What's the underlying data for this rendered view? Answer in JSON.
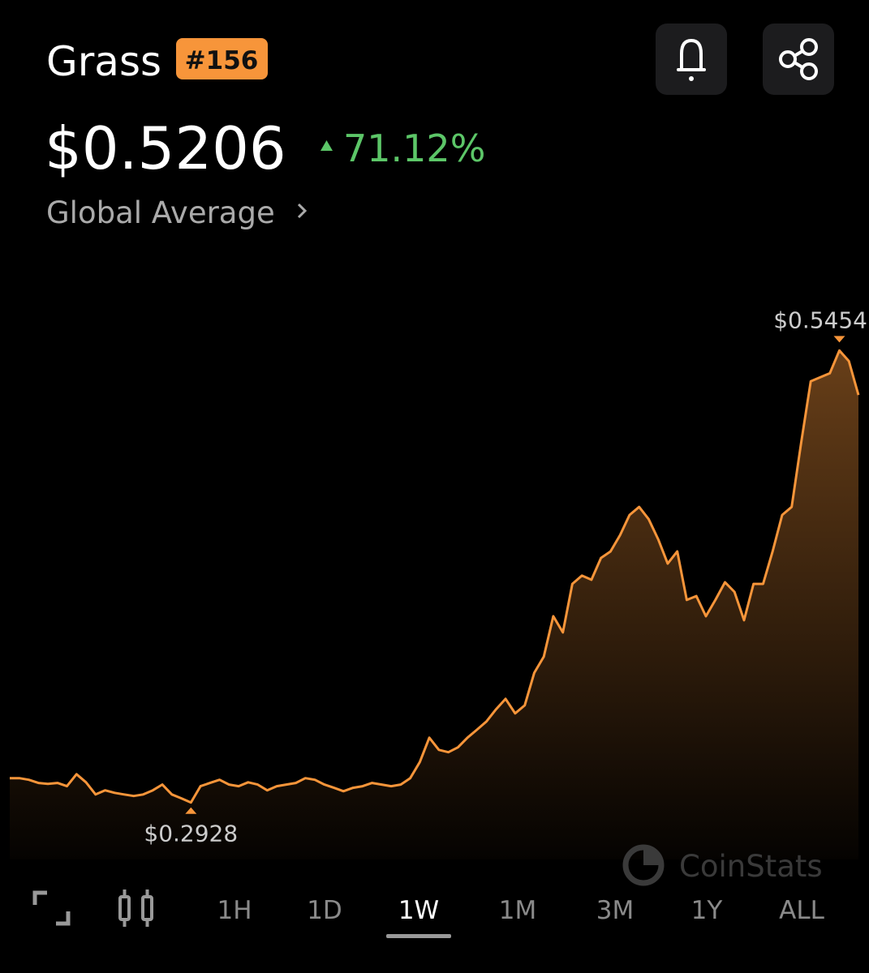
{
  "header": {
    "name": "Grass",
    "rank": "#156",
    "price": "$0.5206",
    "change": "71.12%",
    "source": "Global Average"
  },
  "chart_data": {
    "type": "line",
    "color": "#f7953a",
    "values": [
      0.3064,
      0.3064,
      0.3055,
      0.3037,
      0.3032,
      0.3037,
      0.3019,
      0.3086,
      0.3041,
      0.2973,
      0.2996,
      0.2982,
      0.2973,
      0.2964,
      0.2973,
      0.2996,
      0.3028,
      0.2973,
      0.2951,
      0.2928,
      0.3019,
      0.3037,
      0.3055,
      0.3028,
      0.3019,
      0.3041,
      0.3028,
      0.2996,
      0.3019,
      0.3028,
      0.3037,
      0.3064,
      0.3055,
      0.3028,
      0.301,
      0.2991,
      0.301,
      0.3019,
      0.3037,
      0.3028,
      0.3019,
      0.3028,
      0.3064,
      0.3154,
      0.329,
      0.3222,
      0.3209,
      0.3236,
      0.329,
      0.3335,
      0.3381,
      0.3449,
      0.3507,
      0.3426,
      0.3471,
      0.3652,
      0.3743,
      0.3969,
      0.3879,
      0.415,
      0.4196,
      0.4173,
      0.4295,
      0.4331,
      0.4422,
      0.4535,
      0.458,
      0.4512,
      0.4399,
      0.4263,
      0.4331,
      0.406,
      0.4082,
      0.3969,
      0.406,
      0.4159,
      0.4105,
      0.3947,
      0.415,
      0.415,
      0.4331,
      0.4535,
      0.458,
      0.4942,
      0.5282,
      0.5305,
      0.5327,
      0.5454,
      0.5395,
      0.5206
    ],
    "ylim": [
      0.27,
      0.58
    ],
    "annotations": [
      {
        "value": 0.5454,
        "label": "$0.5454"
      },
      {
        "value": 0.2928,
        "label": "$0.2928"
      }
    ]
  },
  "watermark": "CoinStats",
  "timeframes": [
    "1H",
    "1D",
    "1W",
    "1M",
    "3M",
    "1Y",
    "ALL"
  ],
  "active_timeframe": "1W"
}
